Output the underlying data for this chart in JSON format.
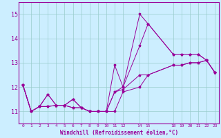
{
  "xlabel": "Windchill (Refroidissement éolien,°C)",
  "background_color": "#cceeff",
  "line_color": "#990099",
  "grid_color": "#99cccc",
  "ylim": [
    10.5,
    15.5
  ],
  "xlim": [
    -0.5,
    23.5
  ],
  "yticks": [
    11,
    12,
    13,
    14,
    15
  ],
  "xtick_positions": [
    0,
    1,
    2,
    3,
    4,
    5,
    6,
    7,
    8,
    9,
    10,
    11,
    12,
    14,
    15,
    18,
    19,
    20,
    21,
    22,
    23
  ],
  "xtick_labels": [
    "0",
    "1",
    "2",
    "3",
    "4",
    "5",
    "6",
    "7",
    "8",
    "9",
    "10",
    "11",
    "12",
    "14",
    "15",
    "18",
    "19",
    "20",
    "21",
    "22",
    "23"
  ],
  "x_vals": [
    0,
    1,
    2,
    3,
    4,
    5,
    6,
    7,
    8,
    9,
    10,
    11,
    12,
    14,
    15,
    18,
    19,
    20,
    21,
    22,
    23
  ],
  "series": [
    [
      12.1,
      11.0,
      11.2,
      11.7,
      11.25,
      11.25,
      11.5,
      11.15,
      11.0,
      11.0,
      11.0,
      12.9,
      12.0,
      15.0,
      14.6,
      13.35,
      13.35,
      13.35,
      13.35,
      13.1,
      12.6
    ],
    [
      12.1,
      11.0,
      11.2,
      11.7,
      11.25,
      11.25,
      11.5,
      11.15,
      11.0,
      11.0,
      11.0,
      11.8,
      12.0,
      13.7,
      14.6,
      13.35,
      13.35,
      13.35,
      13.35,
      13.1,
      12.6
    ],
    [
      12.1,
      11.0,
      11.2,
      11.2,
      11.25,
      11.25,
      11.15,
      11.15,
      11.0,
      11.0,
      11.0,
      11.8,
      11.9,
      12.5,
      12.5,
      12.9,
      12.9,
      13.0,
      13.0,
      13.1,
      12.6
    ],
    [
      12.1,
      11.0,
      11.2,
      11.2,
      11.25,
      11.25,
      11.15,
      11.15,
      11.0,
      11.0,
      11.0,
      11.0,
      11.8,
      12.0,
      12.5,
      12.9,
      12.9,
      13.0,
      13.0,
      13.1,
      12.6
    ]
  ]
}
